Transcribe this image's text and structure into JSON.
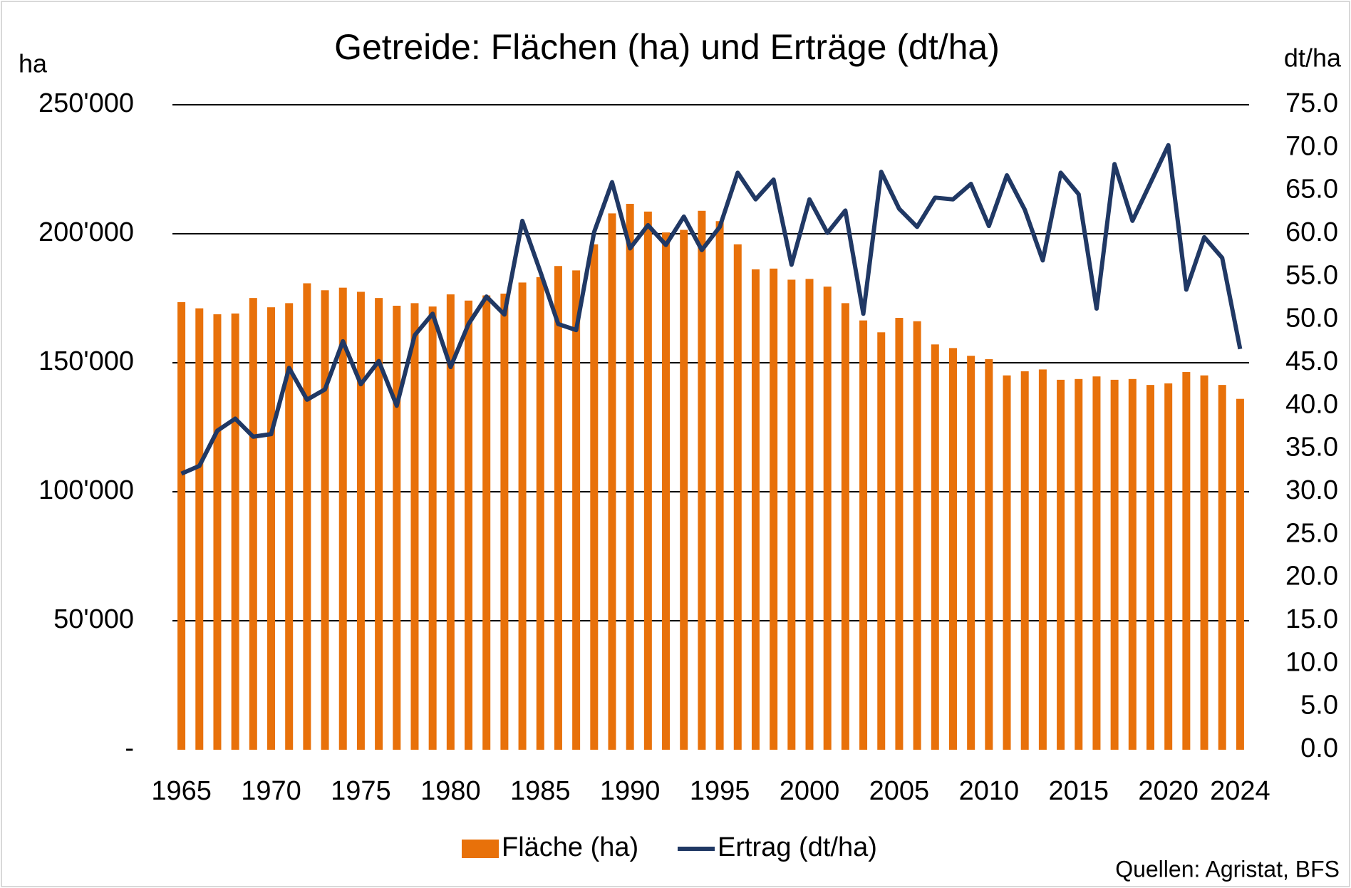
{
  "chart_data": {
    "type": "bar-line",
    "title": "Getreide: Flächen (ha) und Erträge  (dt/ha)",
    "y_label": "ha",
    "y2_label": "dt/ha",
    "source": "Quellen: Agristat, BFS",
    "x": [
      1965,
      1966,
      1967,
      1968,
      1969,
      1970,
      1971,
      1972,
      1973,
      1974,
      1975,
      1976,
      1977,
      1978,
      1979,
      1980,
      1981,
      1982,
      1983,
      1984,
      1985,
      1986,
      1987,
      1988,
      1989,
      1990,
      1991,
      1992,
      1993,
      1994,
      1995,
      1996,
      1997,
      1998,
      1999,
      2000,
      2001,
      2002,
      2003,
      2004,
      2005,
      2006,
      2007,
      2008,
      2009,
      2010,
      2011,
      2012,
      2013,
      2014,
      2015,
      2016,
      2017,
      2018,
      2019,
      2020,
      2021,
      2022,
      2023,
      2024
    ],
    "xlim": [
      1964.5,
      2024.5
    ],
    "xticks": [
      1965,
      1970,
      1975,
      1980,
      1985,
      1990,
      1995,
      2000,
      2005,
      2010,
      2015,
      2020,
      2024
    ],
    "series": [
      {
        "name": "Fläche (ha)",
        "type": "bar",
        "color": "#e8710a",
        "values": [
          173500,
          171100,
          168800,
          169100,
          175100,
          171500,
          173100,
          180800,
          178100,
          179100,
          177500,
          175100,
          172100,
          173100,
          171800,
          176500,
          174100,
          176100,
          176800,
          181100,
          183200,
          187500,
          185800,
          195900,
          207900,
          211600,
          208600,
          200500,
          201500,
          208900,
          204900,
          195900,
          186200,
          186500,
          182200,
          182500,
          179500,
          173100,
          166400,
          161800,
          167400,
          166100,
          157100,
          155700,
          152700,
          151400,
          145100,
          146700,
          147400,
          143400,
          143700,
          144700,
          143400,
          143700,
          141400,
          142000,
          146400,
          145100,
          141400,
          136000
        ]
      },
      {
        "name": "Ertrag (dt/ha)",
        "type": "line",
        "axis": "y2",
        "color": "#203864",
        "values": [
          32.1,
          33.0,
          37.1,
          38.5,
          36.4,
          36.7,
          44.4,
          40.7,
          41.9,
          47.5,
          42.5,
          45.2,
          40.0,
          48.2,
          50.7,
          44.5,
          49.5,
          52.7,
          50.6,
          61.5,
          55.6,
          49.5,
          48.8,
          60.2,
          66.0,
          58.3,
          61.0,
          58.7,
          62.0,
          58.1,
          60.8,
          67.1,
          64.0,
          66.3,
          56.4,
          64.0,
          60.1,
          62.7,
          50.7,
          67.2,
          62.9,
          60.8,
          64.2,
          64.0,
          65.8,
          60.9,
          66.8,
          62.8,
          56.9,
          67.1,
          64.6,
          51.3,
          68.1,
          61.5,
          65.9,
          70.3,
          53.5,
          59.6,
          57.2,
          46.6
        ]
      }
    ],
    "ylim": [
      0,
      250000
    ],
    "yticks": [
      {
        "value": 0,
        "label": "-"
      },
      {
        "value": 50000,
        "label": "50'000"
      },
      {
        "value": 100000,
        "label": "100'000"
      },
      {
        "value": 150000,
        "label": "150'000"
      },
      {
        "value": 200000,
        "label": "200'000"
      },
      {
        "value": 250000,
        "label": "250'000"
      }
    ],
    "y2lim": [
      0,
      75
    ],
    "y2ticks": [
      {
        "value": 0,
        "label": "0.0"
      },
      {
        "value": 5,
        "label": "5.0"
      },
      {
        "value": 10,
        "label": "10.0"
      },
      {
        "value": 15,
        "label": "15.0"
      },
      {
        "value": 20,
        "label": "20.0"
      },
      {
        "value": 25,
        "label": "25.0"
      },
      {
        "value": 30,
        "label": "30.0"
      },
      {
        "value": 35,
        "label": "35.0"
      },
      {
        "value": 40,
        "label": "40.0"
      },
      {
        "value": 45,
        "label": "45.0"
      },
      {
        "value": 50,
        "label": "50.0"
      },
      {
        "value": 55,
        "label": "55.0"
      },
      {
        "value": 60,
        "label": "60.0"
      },
      {
        "value": 65,
        "label": "65.0"
      },
      {
        "value": 70,
        "label": "70.0"
      },
      {
        "value": 75,
        "label": "75.0"
      }
    ],
    "grid": true,
    "legend": "bottom"
  }
}
